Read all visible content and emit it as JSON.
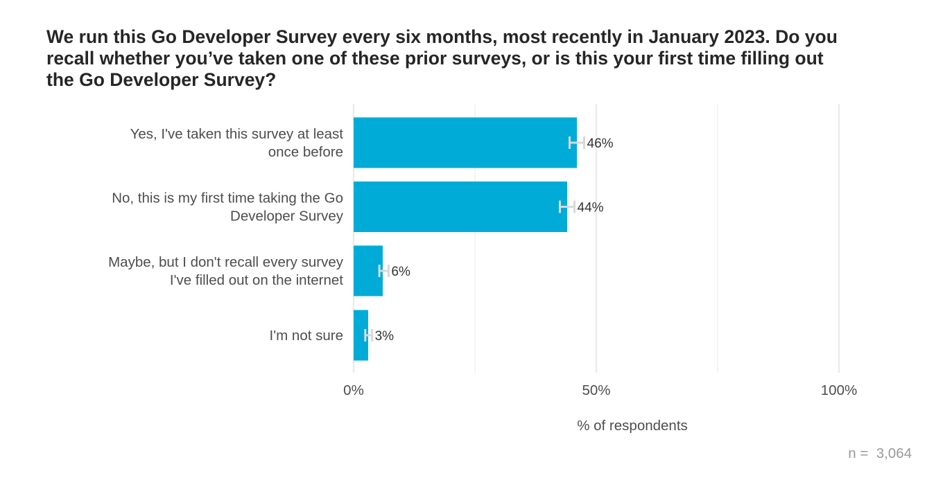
{
  "chart_data": {
    "type": "bar",
    "orientation": "horizontal",
    "title": "We run this Go Developer Survey every six months, most recently in January 2023. Do you recall whether you’ve taken one of these prior surveys, or is this your first time filling out the Go Developer Survey?",
    "categories": [
      [
        "Yes, I've taken this survey at least",
        "once before"
      ],
      [
        "No, this is my first time taking the Go",
        "Developer Survey"
      ],
      [
        "Maybe, but I don't recall every survey",
        "I've filled out on the internet"
      ],
      [
        "I'm not sure"
      ]
    ],
    "values": [
      46,
      44,
      6,
      3
    ],
    "data_labels": [
      "46%",
      "44%",
      "6%",
      "3%"
    ],
    "error_bars": [
      [
        44.5,
        47.5
      ],
      [
        42.5,
        45.5
      ],
      [
        5.3,
        7.2
      ],
      [
        2.4,
        3.8
      ]
    ],
    "xlim": [
      0,
      100
    ],
    "xticks": [
      0,
      50,
      100
    ],
    "xtick_labels": [
      "0%",
      "50%",
      "100%"
    ],
    "minor_grid": [
      25,
      75
    ],
    "xlabel": "% of respondents",
    "ylabel": "",
    "grid": true,
    "legend": "none",
    "bar_color": "#00acd7",
    "errorbar_color": "#d9d9d9",
    "grid_color": "#ebebeb",
    "note": "n =  3,064"
  }
}
